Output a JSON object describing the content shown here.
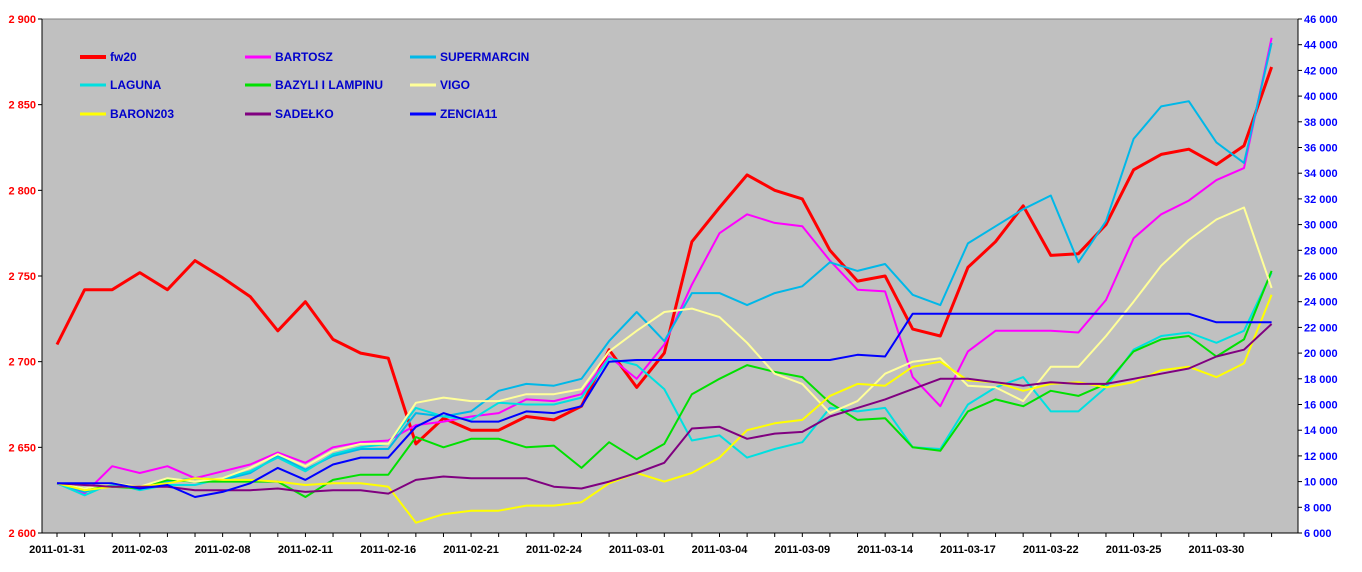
{
  "chart_data": {
    "type": "line",
    "title": "",
    "xlabel": "",
    "ylabel": "",
    "ylim": [
      2600,
      2900
    ],
    "y2lim": [
      6000,
      46000
    ],
    "grid": false,
    "legend_position": "top-left",
    "x_ticks": [
      "2011-01-31",
      "2011-02-03",
      "2011-02-08",
      "2011-02-11",
      "2011-02-16",
      "2011-02-21",
      "2011-02-24",
      "2011-03-01",
      "2011-03-04",
      "2011-03-09",
      "2011-03-14",
      "2011-03-17",
      "2011-03-22",
      "2011-03-25",
      "2011-03-30"
    ],
    "y_ticks_left": [
      "2 600",
      "2 650",
      "2 700",
      "2 750",
      "2 800",
      "2 850",
      "2 900"
    ],
    "y_ticks_right": [
      "6 000",
      "8 000",
      "10 000",
      "12 000",
      "14 000",
      "16 000",
      "18 000",
      "20 000",
      "22 000",
      "24 000",
      "26 000",
      "28 000",
      "30 000",
      "32 000",
      "34 000",
      "36 000",
      "38 000",
      "40 000",
      "42 000",
      "44 000",
      "46 000"
    ],
    "series": [
      {
        "name": "fw20",
        "color": "#ff0000",
        "axis": "left",
        "width": 3,
        "values": [
          2710,
          2742,
          2742,
          2752,
          2742,
          2759,
          2749,
          2738,
          2718,
          2735,
          2713,
          2705,
          2702,
          2652,
          2667,
          2660,
          2660,
          2668,
          2666,
          2674,
          2707,
          2685,
          2705,
          2770,
          2790,
          2809,
          2800,
          2795,
          2765,
          2747,
          2750,
          2719,
          2715,
          2755,
          2770,
          2791,
          2762,
          2763,
          2780,
          2812,
          2821,
          2824,
          2815,
          2826,
          2872
        ]
      },
      {
        "name": "BARTOSZ",
        "color": "#ff00ff",
        "axis": "left",
        "width": 2,
        "values": [
          2629,
          2623,
          2639,
          2635,
          2639,
          2632,
          2636,
          2640,
          2647,
          2641,
          2650,
          2653,
          2654,
          2663,
          2665,
          2668,
          2670,
          2678,
          2677,
          2681,
          2703,
          2690,
          2710,
          2745,
          2775,
          2786,
          2781,
          2779,
          2759,
          2742,
          2741,
          2691,
          2674,
          2706,
          2718,
          2718,
          2718,
          2717,
          2736,
          2772,
          2786,
          2794,
          2806,
          2813,
          2889
        ]
      },
      {
        "name": "SUPERMARCIN",
        "color": "#00b8e8",
        "axis": "left",
        "width": 2,
        "values": [
          2629,
          2624,
          2628,
          2626,
          2630,
          2632,
          2631,
          2635,
          2645,
          2637,
          2645,
          2649,
          2649,
          2670,
          2668,
          2671,
          2683,
          2687,
          2686,
          2690,
          2712,
          2729,
          2712,
          2740,
          2740,
          2733,
          2740,
          2744,
          2758,
          2753,
          2757,
          2739,
          2733,
          2769,
          2779,
          2789,
          2797,
          2758,
          2782,
          2830,
          2849,
          2852,
          2828,
          2816,
          2886
        ]
      },
      {
        "name": "LAGUNA",
        "color": "#00e0e0",
        "axis": "left",
        "width": 2,
        "values": [
          2629,
          2622,
          2629,
          2625,
          2628,
          2628,
          2632,
          2636,
          2644,
          2636,
          2646,
          2650,
          2652,
          2673,
          2668,
          2666,
          2676,
          2675,
          2675,
          2679,
          2702,
          2698,
          2684,
          2654,
          2657,
          2644,
          2649,
          2653,
          2673,
          2671,
          2673,
          2650,
          2649,
          2675,
          2685,
          2691,
          2671,
          2671,
          2685,
          2707,
          2715,
          2717,
          2711,
          2718,
          2752
        ]
      },
      {
        "name": "BAZYLI I LAMPINU",
        "color": "#00e000",
        "axis": "left",
        "width": 2,
        "values": [
          2629,
          2626,
          2627,
          2626,
          2631,
          2630,
          2630,
          2630,
          2630,
          2621,
          2631,
          2634,
          2634,
          2656,
          2650,
          2655,
          2655,
          2650,
          2651,
          2638,
          2653,
          2643,
          2652,
          2681,
          2690,
          2698,
          2694,
          2691,
          2676,
          2666,
          2667,
          2650,
          2648,
          2671,
          2678,
          2674,
          2683,
          2680,
          2687,
          2706,
          2713,
          2715,
          2703,
          2713,
          2753
        ]
      },
      {
        "name": "VIGO",
        "color": "#ffff99",
        "axis": "left",
        "width": 2,
        "values": [
          2629,
          2626,
          2629,
          2627,
          2632,
          2630,
          2632,
          2638,
          2646,
          2639,
          2648,
          2652,
          2652,
          2676,
          2679,
          2677,
          2677,
          2681,
          2681,
          2684,
          2706,
          2718,
          2729,
          2731,
          2726,
          2711,
          2693,
          2687,
          2670,
          2677,
          2693,
          2700,
          2702,
          2686,
          2685,
          2677,
          2697,
          2697,
          2715,
          2735,
          2756,
          2771,
          2783,
          2790,
          2743
        ]
      },
      {
        "name": "BARON203",
        "color": "#ffff00",
        "axis": "left",
        "width": 2,
        "values": [
          2629,
          2625,
          2627,
          2627,
          2629,
          2632,
          2631,
          2631,
          2630,
          2628,
          2629,
          2629,
          2627,
          2606,
          2611,
          2613,
          2613,
          2616,
          2616,
          2618,
          2629,
          2635,
          2630,
          2635,
          2644,
          2660,
          2664,
          2666,
          2680,
          2687,
          2686,
          2697,
          2700,
          2689,
          2688,
          2683,
          2687,
          2688,
          2685,
          2688,
          2695,
          2697,
          2691,
          2699,
          2739
        ]
      },
      {
        "name": "SADEŁKO",
        "color": "#800080",
        "axis": "left",
        "width": 2,
        "values": [
          2629,
          2628,
          2627,
          2627,
          2627,
          2625,
          2625,
          2625,
          2626,
          2624,
          2625,
          2625,
          2623,
          2631,
          2633,
          2632,
          2632,
          2632,
          2627,
          2626,
          2630,
          2635,
          2641,
          2661,
          2662,
          2655,
          2658,
          2659,
          2668,
          2673,
          2678,
          2684,
          2690,
          2690,
          2688,
          2686,
          2688,
          2687,
          2687,
          2690,
          2693,
          2696,
          2703,
          2707,
          2722
        ]
      },
      {
        "name": "ZENCIA11",
        "color": "#0000ff",
        "axis": "left",
        "width": 2,
        "values": [
          2629,
          2629,
          2629,
          2626,
          2628,
          2621,
          2624,
          2629,
          2638,
          2631,
          2640,
          2644,
          2644,
          2662,
          2670,
          2665,
          2665,
          2671,
          2670,
          2674,
          2700,
          2701,
          2701,
          2701,
          2701,
          2701,
          2701,
          2701,
          2701,
          2704,
          2703,
          2728,
          2728,
          2728,
          2728,
          2728,
          2728,
          2728,
          2728,
          2728,
          2728,
          2728,
          2723,
          2723,
          2723
        ]
      }
    ]
  }
}
